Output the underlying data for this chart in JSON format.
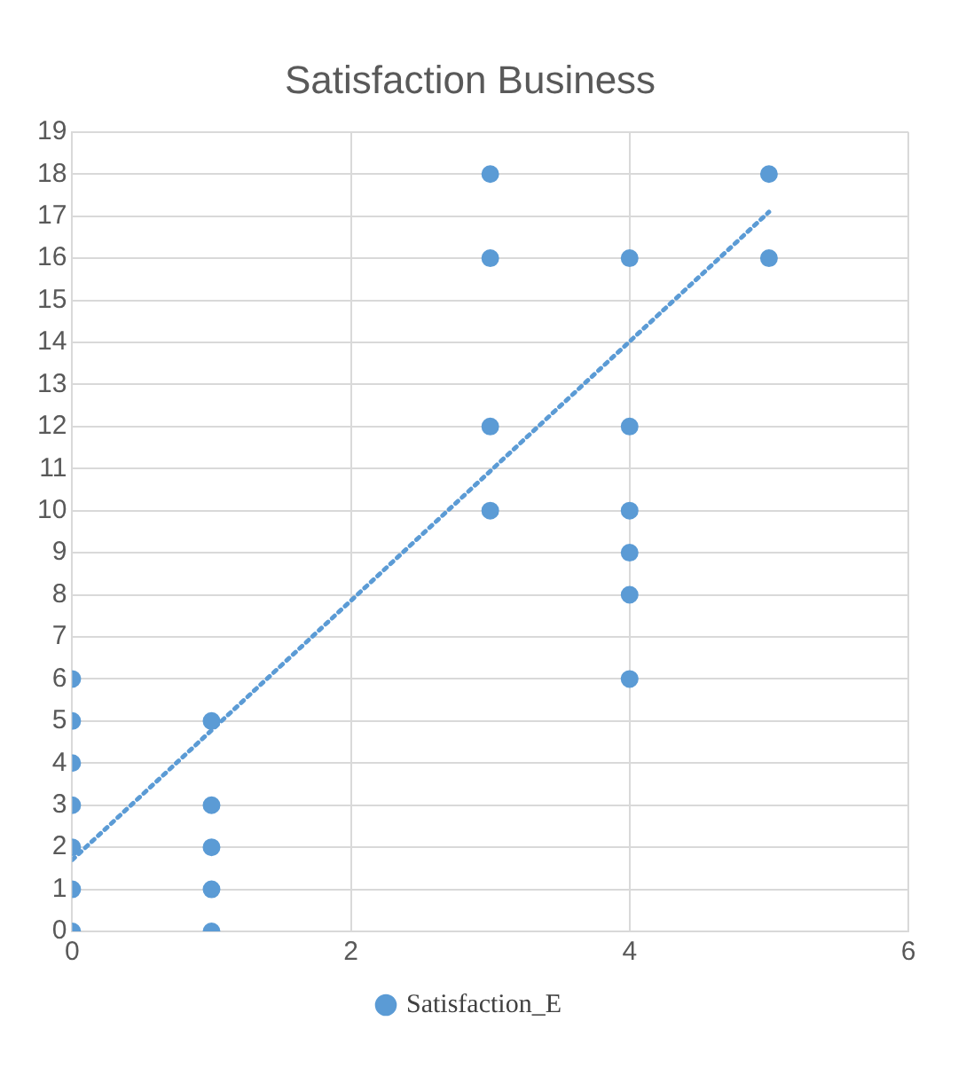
{
  "chart_data": {
    "type": "scatter",
    "title": "Satisfaction Business",
    "xlim": [
      0,
      6
    ],
    "xticks": [
      0,
      2,
      4,
      6
    ],
    "ylim": [
      0,
      19
    ],
    "yticks": [
      0,
      1,
      2,
      3,
      4,
      5,
      6,
      7,
      8,
      9,
      10,
      11,
      12,
      13,
      14,
      15,
      16,
      17,
      18,
      19
    ],
    "grid": true,
    "legend": "bottom",
    "marker": "circle",
    "series": [
      {
        "name": "Satisfaction_E",
        "color": "#5b9bd5",
        "x": [
          0,
          0,
          0,
          0,
          0,
          0,
          0,
          1,
          1,
          1,
          1,
          1,
          3,
          3,
          3,
          3,
          4,
          4,
          4,
          4,
          4,
          4,
          5,
          5
        ],
        "values": [
          0,
          1,
          2,
          3,
          4,
          5,
          6,
          0,
          1,
          2,
          3,
          5,
          10,
          12,
          16,
          18,
          6,
          8,
          9,
          10,
          12,
          16,
          16,
          18
        ]
      },
      {
        "type": "line",
        "color": "#5b9bd5",
        "line_style": "dotted",
        "marker": "none",
        "x": [
          0,
          5
        ],
        "values": [
          1.7,
          17.1
        ]
      }
    ]
  }
}
